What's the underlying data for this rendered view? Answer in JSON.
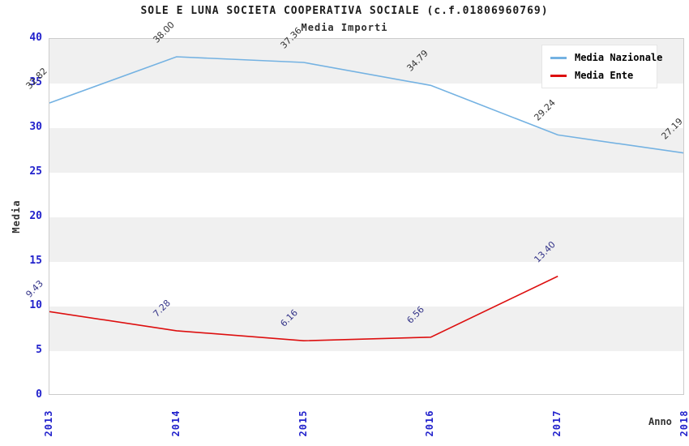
{
  "chart_data": {
    "type": "line",
    "title": "SOLE E LUNA SOCIETA COOPERATIVA SOCIALE (c.f.01806960769)",
    "subtitle": "Media Importi",
    "xlabel": "Anno",
    "ylabel": "Media",
    "categories": [
      "2013",
      "2014",
      "2015",
      "2016",
      "2017",
      "2018"
    ],
    "ylim": [
      0,
      40
    ],
    "yticks": [
      0,
      5,
      10,
      15,
      20,
      25,
      30,
      35,
      40
    ],
    "grid": "alternating-horizontal-bands",
    "legend_position": "top-right",
    "colors": {
      "axis_tick_text": "#2222cc",
      "band_gray": "#f0f0f0",
      "band_white": "#ffffff",
      "plot_border": "#cccccc"
    },
    "series": [
      {
        "name": "Media Nazionale",
        "color": "#74b2e2",
        "label_color": "#333333",
        "values": [
          32.82,
          38.0,
          37.36,
          34.79,
          29.24,
          27.19
        ],
        "labels": [
          "32.82",
          "38.00",
          "37.36",
          "34.79",
          "29.24",
          "27.19"
        ]
      },
      {
        "name": "Media Ente",
        "color": "#dd0f0f",
        "label_color": "#333388",
        "values": [
          9.43,
          7.28,
          6.16,
          6.56,
          13.4,
          null
        ],
        "labels": [
          "9.43",
          "7.28",
          "6.16",
          "6.56",
          "13.40",
          ""
        ]
      }
    ]
  }
}
